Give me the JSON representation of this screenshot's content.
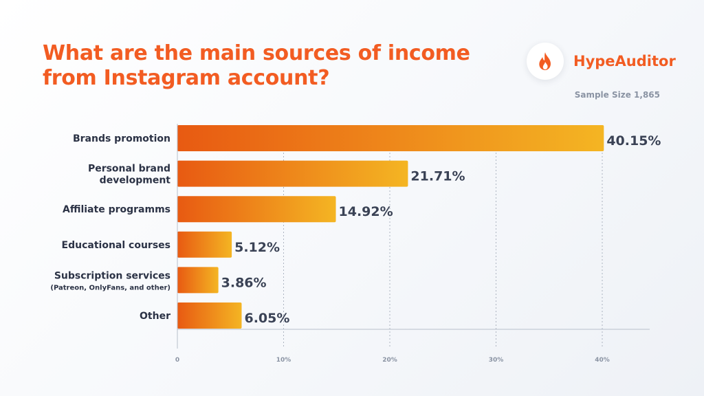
{
  "header": {
    "title": "What are the main sources of income from Instagram account?",
    "brand_name": "HypeAuditor",
    "brand_icon": "flame-icon",
    "sample_size": "Sample Size 1,865"
  },
  "colors": {
    "title": "#f25c22",
    "bar_start": "#e85a12",
    "bar_end": "#f4b523",
    "value_label": "#3a4255",
    "category_label": "#2b3245",
    "tick_label": "#8a93a3",
    "grid": "#9aa3b2"
  },
  "chart_data": {
    "type": "bar",
    "orientation": "horizontal",
    "title": "What are the main sources of income from Instagram account?",
    "categories": [
      [
        "Brands promotion"
      ],
      [
        "Personal brand",
        "development"
      ],
      [
        "Affiliate programms"
      ],
      [
        "Educational courses"
      ],
      [
        "Subscription services",
        "(Patreon, OnlyFans, and other)"
      ],
      [
        "Other"
      ]
    ],
    "values": [
      40.15,
      21.71,
      14.92,
      5.12,
      3.86,
      6.05
    ],
    "value_labels": [
      "40.15%",
      "21.71%",
      "14.92%",
      "5.12%",
      "3.86%",
      "6.05%"
    ],
    "xlim": [
      0,
      44
    ],
    "xticks": [
      0,
      10,
      20,
      30,
      40
    ],
    "xtick_labels": [
      "0",
      "10%",
      "20%",
      "30%",
      "40%"
    ],
    "grid": "vertical dashed",
    "legend": "none"
  }
}
